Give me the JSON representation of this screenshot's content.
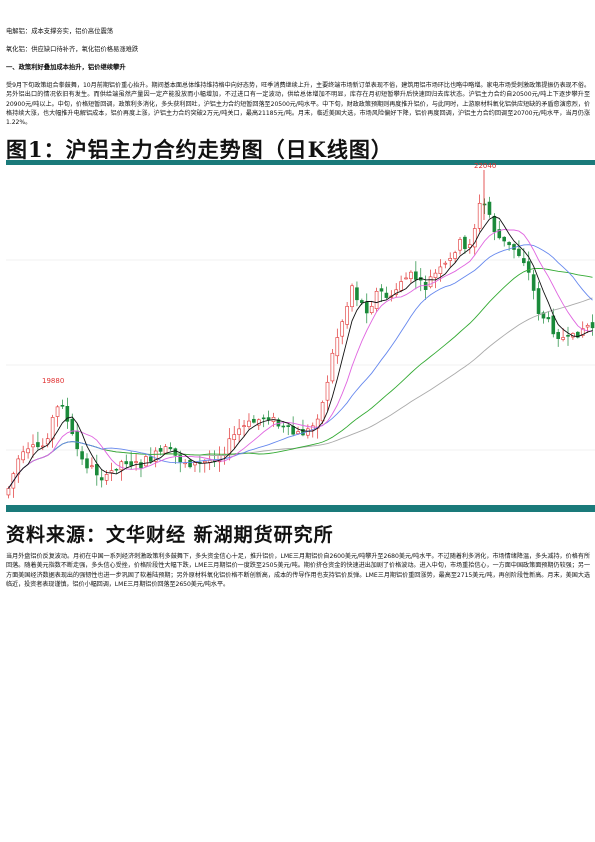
{
  "doc": {
    "line1": "电解铝：成本支撑夯实，铝价高位震荡",
    "line2": "氧化铝：供应缺口待补齐，氧化铝价格易涨难跌",
    "section_heading": "一、政策利好叠加成本抬升，铝价继续攀升",
    "para1": "受9月下旬政策组合拳鼓舞，10月前期铝价重心抬升。期间基本面总体维持维持格中向好态势，旺季消费继续上升，主要终端市场新订单表现不俗，建筑用铝市场环比也略中略增。家电市场受刺激政策提振仍表现不俗。另外铝出口的情况依旧有发生。而供给端虽然产量因一定产能投放而小幅增加，不过进口有一定波动，供给总体增加不明显，库存在月初短暂攀升后快速回归去库状态。沪铝主力合约自20500元/吨上下逐步攀升至20900元/吨以上。中旬，价格短暂回调，政策利多消化，多头获利回吐，沪铝主力合约短暂回落至20500元/吨水平。中下旬，财政政策预期则再度推升铝价，与此同时，上游原材料氧化铝供应短缺的矛盾愈演愈烈，价格持续大涨，也大幅推升电解铝成本，铝价再度上涨，沪铝主力合约突破2万元/吨关口，最高21185元/吨。月末，临近美国大选，市场风险偏好下降，铝价再度回调，沪铝主力合约回调至20700元/吨水平，当月仍涨1.22%。",
    "figure_title": "图1：沪铝主力合约走势图（日K线图）",
    "source": "资料来源：文华财经 新湖期货研究所",
    "para2": "当月外盘铝价反复波动。月初在中国一系列经济刺激政策利多鼓舞下，多头资金信心十足，推升铝价，LME三月期铝价自2600美元/吨攀升至2680美元/吨水平。不过随着利多消化，市场情绪降温，多头减持，价格有所回落。随着美元指数不断走强，多头信心受挫，价格阶段性大幅下跌，LME三月期铝价一度跌至2505美元/吨。期价挤仓资金的快速进出加剧了价格波动。进入中旬，市场重拾信心，一方面中国政策面预期仍较强；另一方面美国经济数据表现出的强韧性也进一步巩固了软着陆预期；另外原材料氧化铝价格不断创新高，成本的传导作用也支持铝价反弹。LME三月期铝价重回涨势，最高至2715美元/吨，再创阶段性新高。月末，美国大选临近，投资者表现谨慎，铝价小幅回调，LME三月期铝价回落至2650美元/吨水平。"
  },
  "chart_data": {
    "type": "candlestick",
    "annotations": {
      "low_label": "19880",
      "high_label": "22040"
    },
    "colors": {
      "up": "#e03030",
      "down": "#1a8a3a",
      "band": "#1a7a7a",
      "ma5": "#111111",
      "ma10": "#e066e0",
      "ma20": "#6688ee",
      "ma40": "#33aa33",
      "ma60": "#aaaaaa"
    }
  }
}
